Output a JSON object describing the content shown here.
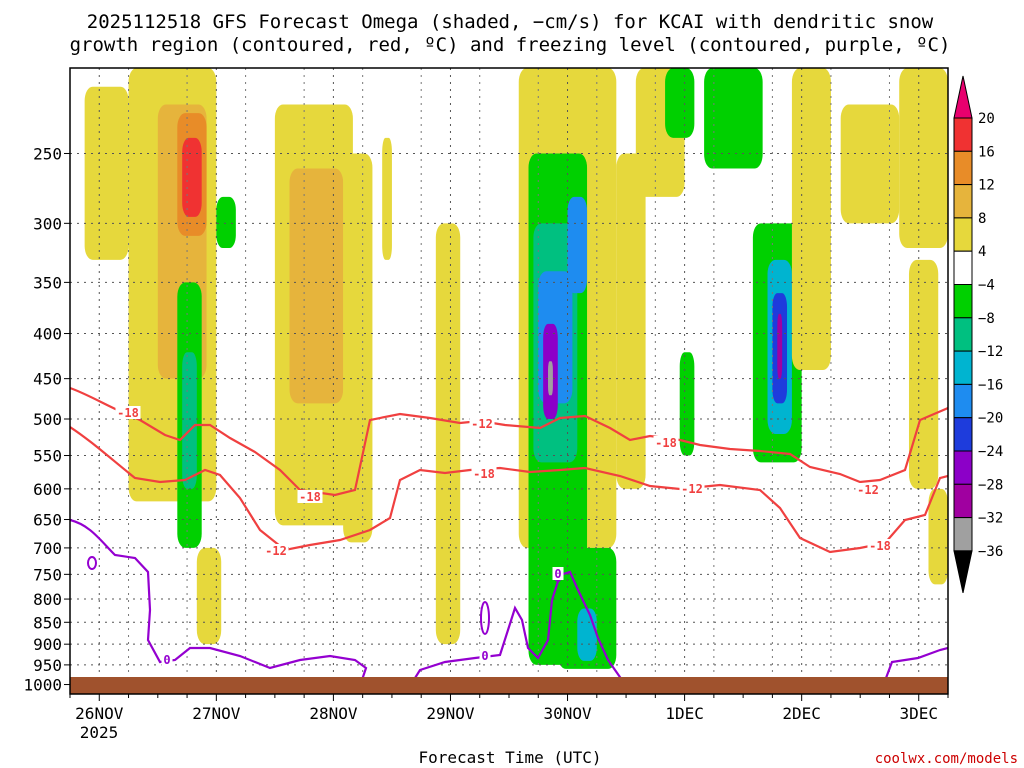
{
  "title": {
    "line1": "2025112518 GFS Forecast Omega (shaded, −cm/s) for KCAI with dendritic snow",
    "line2": "growth region (contoured, red, ºC) and freezing level (contoured, purple, ºC)"
  },
  "xlabel": "Forecast Time (UTC)",
  "credit": "coolwx.com/models",
  "chart_data": {
    "type": "heatmap",
    "title": "2025112518 GFS Forecast Omega (shaded, −cm/s) for KCAI with dendritic snow growth region (contoured, red, ºC) and freezing level (contoured, purple, ºC)",
    "xlabel": "Forecast Time (UTC)",
    "ylabel": "",
    "y_ticks": [
      "250",
      "300",
      "350",
      "400",
      "450",
      "500",
      "550",
      "600",
      "650",
      "700",
      "750",
      "800",
      "850",
      "900",
      "950",
      "1000"
    ],
    "y_tick_values": [
      250,
      300,
      350,
      400,
      450,
      500,
      550,
      600,
      650,
      700,
      750,
      800,
      850,
      900,
      950,
      1000
    ],
    "ylim_hpa": [
      1025,
      200
    ],
    "x_ticks": [
      "26NOV",
      "27NOV",
      "28NOV",
      "29NOV",
      "30NOV",
      "1DEC",
      "2DEC",
      "3DEC"
    ],
    "x_tick_hours": [
      6,
      30,
      54,
      78,
      102,
      126,
      150,
      174
    ],
    "x_year_label": "2025",
    "xlim_hours": [
      0,
      180
    ],
    "colorbar": {
      "labels": [
        "20",
        "16",
        "12",
        "8",
        "4",
        "−4",
        "−8",
        "−12",
        "−16",
        "−20",
        "−24",
        "−28",
        "−32",
        "−36"
      ],
      "colors": [
        "#e8006e",
        "#f03232",
        "#e88c28",
        "#e6b43c",
        "#e6d83c",
        "#ffffff",
        "#00d000",
        "#00c080",
        "#00b4d0",
        "#1e8cf0",
        "#1e3cdc",
        "#8c00c8",
        "#a000a0",
        "#a0a0a0",
        "#000000"
      ]
    },
    "contours": {
      "dgz_labels": [
        "-18",
        "-12",
        "-18",
        "-12",
        "-18",
        "-12",
        "-18",
        "-12",
        "-18",
        "-12"
      ],
      "freezing_labels": [
        "0",
        "0",
        "0"
      ],
      "dgz_color": "#f04040",
      "freezing_color": "#9400d0"
    },
    "ground_color": "#a0522d",
    "shaded_regions": [
      {
        "t0": 3,
        "t1": 12,
        "p0": 210,
        "p1": 330,
        "v": 6
      },
      {
        "t0": 12,
        "t1": 30,
        "p0": 200,
        "p1": 620,
        "v": 6
      },
      {
        "t0": 18,
        "t1": 28,
        "p0": 220,
        "p1": 450,
        "v": 10
      },
      {
        "t0": 22,
        "t1": 28,
        "p0": 225,
        "p1": 310,
        "v": 14
      },
      {
        "t0": 23,
        "t1": 27,
        "p0": 240,
        "p1": 295,
        "v": 18
      },
      {
        "t0": 22,
        "t1": 27,
        "p0": 350,
        "p1": 700,
        "v": -6
      },
      {
        "t0": 23,
        "t1": 26,
        "p0": 420,
        "p1": 600,
        "v": -10
      },
      {
        "t0": 26,
        "t1": 31,
        "p0": 700,
        "p1": 900,
        "v": 6
      },
      {
        "t0": 30,
        "t1": 34,
        "p0": 280,
        "p1": 320,
        "v": -6
      },
      {
        "t0": 42,
        "t1": 58,
        "p0": 220,
        "p1": 660,
        "v": 6
      },
      {
        "t0": 45,
        "t1": 56,
        "p0": 260,
        "p1": 480,
        "v": 9
      },
      {
        "t0": 56,
        "t1": 62,
        "p0": 250,
        "p1": 690,
        "v": 5
      },
      {
        "t0": 64,
        "t1": 66,
        "p0": 240,
        "p1": 330,
        "v": 5
      },
      {
        "t0": 75,
        "t1": 80,
        "p0": 300,
        "p1": 900,
        "v": 5
      },
      {
        "t0": 92,
        "t1": 112,
        "p0": 200,
        "p1": 700,
        "v": 5
      },
      {
        "t0": 94,
        "t1": 106,
        "p0": 250,
        "p1": 950,
        "v": -6
      },
      {
        "t0": 95,
        "t1": 104,
        "p0": 300,
        "p1": 560,
        "v": -10
      },
      {
        "t0": 96,
        "t1": 103,
        "p0": 340,
        "p1": 480,
        "v": -16
      },
      {
        "t0": 97,
        "t1": 100,
        "p0": 390,
        "p1": 500,
        "v": -24
      },
      {
        "t0": 98,
        "t1": 99,
        "p0": 430,
        "p1": 470,
        "v": -34
      },
      {
        "t0": 102,
        "t1": 106,
        "p0": 280,
        "p1": 360,
        "v": -18
      },
      {
        "t0": 100,
        "t1": 112,
        "p0": 700,
        "p1": 960,
        "v": -6
      },
      {
        "t0": 104,
        "t1": 108,
        "p0": 820,
        "p1": 940,
        "v": -12
      },
      {
        "t0": 112,
        "t1": 118,
        "p0": 250,
        "p1": 600,
        "v": 5
      },
      {
        "t0": 116,
        "t1": 126,
        "p0": 200,
        "p1": 280,
        "v": 5
      },
      {
        "t0": 122,
        "t1": 128,
        "p0": 200,
        "p1": 240,
        "v": -6
      },
      {
        "t0": 130,
        "t1": 142,
        "p0": 200,
        "p1": 260,
        "v": -6
      },
      {
        "t0": 125,
        "t1": 128,
        "p0": 420,
        "p1": 550,
        "v": -6
      },
      {
        "t0": 140,
        "t1": 150,
        "p0": 300,
        "p1": 560,
        "v": -6
      },
      {
        "t0": 143,
        "t1": 148,
        "p0": 330,
        "p1": 520,
        "v": -12
      },
      {
        "t0": 144,
        "t1": 147,
        "p0": 360,
        "p1": 480,
        "v": -20
      },
      {
        "t0": 145,
        "t1": 146,
        "p0": 380,
        "p1": 450,
        "v": -28
      },
      {
        "t0": 148,
        "t1": 156,
        "p0": 200,
        "p1": 440,
        "v": 5
      },
      {
        "t0": 158,
        "t1": 170,
        "p0": 220,
        "p1": 300,
        "v": 5
      },
      {
        "t0": 170,
        "t1": 180,
        "p0": 200,
        "p1": 320,
        "v": 5
      },
      {
        "t0": 172,
        "t1": 178,
        "p0": 330,
        "p1": 600,
        "v": 5
      },
      {
        "t0": 176,
        "t1": 180,
        "p0": 600,
        "p1": 770,
        "v": 5
      }
    ]
  }
}
